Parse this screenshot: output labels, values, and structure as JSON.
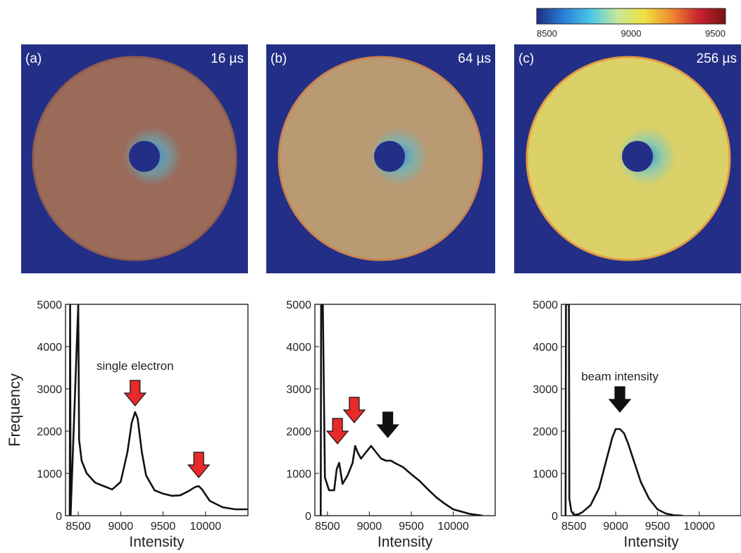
{
  "colorbar": {
    "min_label": "8500",
    "mid_label": "9000",
    "max_label": "9500",
    "range": [
      8500,
      9500
    ],
    "colormap": [
      "#1b2f86",
      "#2a7fd8",
      "#49c8e8",
      "#c8e89a",
      "#f0e040",
      "#f08a30",
      "#c8232e",
      "#7a1414"
    ]
  },
  "images": [
    {
      "label": "(a)",
      "time": "16 µs",
      "disk_color": "#9b6b5a",
      "disk_edge": "#8e5c4f",
      "background": "#232f86"
    },
    {
      "label": "(b)",
      "time": "64 µs",
      "disk_color": "#b99a72",
      "disk_edge": "#c9834f",
      "background": "#232f86"
    },
    {
      "label": "(c)",
      "time": "256 µs",
      "disk_color": "#dcd068",
      "disk_edge": "#e39a42",
      "background": "#232f86"
    }
  ],
  "chart_data": [
    {
      "type": "line",
      "panel": "a",
      "xlabel": "Intensity",
      "ylabel": "Frequency",
      "xlim": [
        8350,
        10500
      ],
      "ylim": [
        0,
        5000
      ],
      "xticks": [
        "8500",
        "9000",
        "9500",
        "10000"
      ],
      "yticks": [
        "0",
        "1000",
        "2000",
        "3000",
        "4000",
        "5000"
      ],
      "annotations": [
        {
          "text": "single electron",
          "x": 9170,
          "y": 3450
        },
        {
          "arrow": "red",
          "x": 9170,
          "y": 2600
        },
        {
          "arrow": "red",
          "x": 9920,
          "y": 900
        }
      ],
      "series": [
        {
          "x": [
            8400,
            8405,
            8410,
            8500,
            8510,
            8540,
            8600,
            8700,
            8800,
            8900,
            9000,
            9080,
            9130,
            9170,
            9200,
            9250,
            9300,
            9400,
            9500,
            9600,
            9700,
            9800,
            9880,
            9920,
            9960,
            10050,
            10200,
            10350,
            10500
          ],
          "y": [
            0,
            5000,
            0,
            5000,
            1800,
            1300,
            1000,
            780,
            700,
            620,
            800,
            1500,
            2200,
            2450,
            2300,
            1500,
            950,
            600,
            520,
            470,
            480,
            580,
            680,
            700,
            620,
            350,
            200,
            150,
            150
          ]
        }
      ]
    },
    {
      "type": "line",
      "panel": "b",
      "xlabel": "Intensity",
      "ylabel": "",
      "xlim": [
        8350,
        10500
      ],
      "ylim": [
        0,
        5000
      ],
      "xticks": [
        "8500",
        "9000",
        "9500",
        "10000"
      ],
      "yticks": [
        "0",
        "1000",
        "2000",
        "3000",
        "4000",
        "5000"
      ],
      "annotations": [
        {
          "arrow": "red",
          "x": 8620,
          "y": 1700
        },
        {
          "arrow": "red",
          "x": 8820,
          "y": 2200
        },
        {
          "arrow": "black",
          "x": 9220,
          "y": 1850
        }
      ],
      "series": [
        {
          "x": [
            8420,
            8425,
            8440,
            8445,
            8470,
            8520,
            8580,
            8610,
            8640,
            8680,
            8740,
            8800,
            8830,
            8860,
            8900,
            8960,
            9020,
            9080,
            9140,
            9200,
            9260,
            9300,
            9400,
            9500,
            9600,
            9700,
            9800,
            9900,
            10000,
            10200,
            10350
          ],
          "y": [
            0,
            5000,
            5000,
            5000,
            900,
            600,
            600,
            1100,
            1250,
            750,
            950,
            1250,
            1650,
            1500,
            1350,
            1500,
            1650,
            1500,
            1350,
            1300,
            1300,
            1250,
            1150,
            980,
            820,
            620,
            430,
            280,
            150,
            40,
            0
          ]
        }
      ]
    },
    {
      "type": "line",
      "panel": "c",
      "xlabel": "Intensity",
      "ylabel": "",
      "xlim": [
        8350,
        10500
      ],
      "ylim": [
        0,
        5000
      ],
      "xticks": [
        "8500",
        "9000",
        "9500",
        "10000"
      ],
      "yticks": [
        "0",
        "1000",
        "2000",
        "3000",
        "4000",
        "5000"
      ],
      "annotations": [
        {
          "text": "beam intensity",
          "x": 9050,
          "y": 3200
        },
        {
          "arrow": "black",
          "x": 9050,
          "y": 2450
        }
      ],
      "series": [
        {
          "x": [
            8400,
            8405,
            8410,
            8440,
            8445,
            8470,
            8500,
            8550,
            8600,
            8700,
            8800,
            8900,
            8960,
            9000,
            9050,
            9100,
            9150,
            9200,
            9300,
            9400,
            9500,
            9600,
            9700,
            9800
          ],
          "y": [
            0,
            5000,
            5000,
            5000,
            400,
            100,
            20,
            30,
            80,
            250,
            650,
            1400,
            1850,
            2050,
            2050,
            1950,
            1700,
            1400,
            800,
            400,
            150,
            50,
            10,
            0
          ]
        }
      ]
    }
  ]
}
